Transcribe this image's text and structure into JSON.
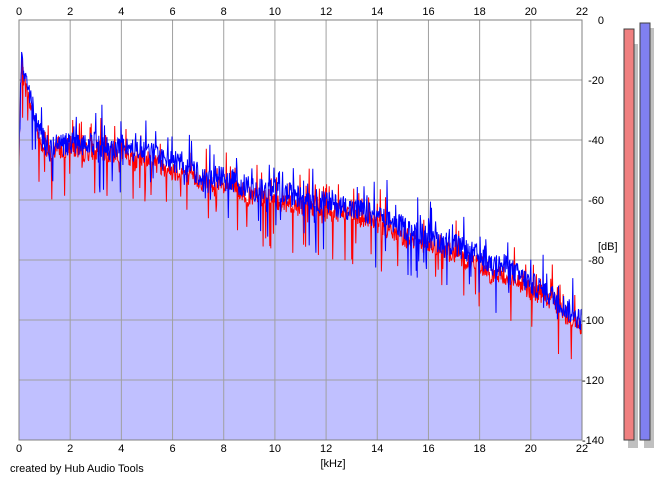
{
  "credit": "created by Hub Audio Tools",
  "colors": {
    "plot_bg": "#ffffff",
    "fill": "#c0c0ff",
    "left_channel": "#ff0000",
    "right_channel": "#0000ff",
    "grid": "#a0a0a0",
    "meter_left": "#f08080",
    "meter_right": "#8080f0"
  },
  "chart_data": {
    "type": "line",
    "title": "",
    "xlabel": "[kHz]",
    "ylabel": "[dB]",
    "xlim": [
      0,
      22
    ],
    "ylim": [
      -140,
      0
    ],
    "x_ticks": [
      "0",
      "2",
      "4",
      "6",
      "8",
      "10",
      "12",
      "14",
      "16",
      "18",
      "20",
      "22"
    ],
    "y_ticks": [
      "0",
      "-20",
      "-40",
      "-60",
      "-80",
      "-100",
      "-120",
      "-140"
    ],
    "x_tick_values": [
      0,
      2,
      4,
      6,
      8,
      10,
      12,
      14,
      16,
      18,
      20,
      22
    ],
    "y_tick_values": [
      0,
      -20,
      -40,
      -60,
      -80,
      -100,
      -120,
      -140
    ],
    "grid": true,
    "x": [
      0,
      0.1,
      0.25,
      0.5,
      0.75,
      1,
      1.25,
      1.5,
      1.75,
      2,
      2.5,
      3,
      3.5,
      4,
      4.5,
      5,
      5.5,
      6,
      6.5,
      7,
      7.5,
      8,
      8.5,
      9,
      9.5,
      10,
      10.5,
      11,
      11.5,
      12,
      12.5,
      13,
      13.5,
      14,
      14.5,
      15,
      15.5,
      16,
      16.5,
      17,
      17.5,
      18,
      18.5,
      19,
      19.5,
      20,
      20.5,
      21,
      21.5,
      22
    ],
    "series": [
      {
        "values": [
          -48,
          -15,
          -22,
          -30,
          -38,
          -43,
          -45,
          -42,
          -44,
          -42,
          -44,
          -43,
          -45,
          -44,
          -47,
          -46,
          -48,
          -50,
          -51,
          -53,
          -55,
          -56,
          -56,
          -59,
          -59,
          -60,
          -61,
          -62,
          -62,
          -64,
          -64,
          -65,
          -66,
          -68,
          -70,
          -72,
          -73,
          -75,
          -76,
          -78,
          -80,
          -81,
          -85,
          -85,
          -87,
          -90,
          -92,
          -95,
          -99,
          -103
        ]
      },
      {
        "values": [
          -46,
          -12,
          -20,
          -28,
          -36,
          -41,
          -44,
          -40,
          -42,
          -41,
          -42,
          -41,
          -43,
          -42,
          -44,
          -44,
          -46,
          -47,
          -48,
          -51,
          -52,
          -53,
          -54,
          -56,
          -57,
          -57,
          -58,
          -59,
          -60,
          -61,
          -62,
          -63,
          -64,
          -66,
          -67,
          -69,
          -71,
          -72,
          -74,
          -75,
          -77,
          -79,
          -82,
          -82,
          -85,
          -88,
          -90,
          -93,
          -97,
          -100
        ]
      }
    ],
    "meters": {
      "left": -3,
      "right": -1
    }
  }
}
